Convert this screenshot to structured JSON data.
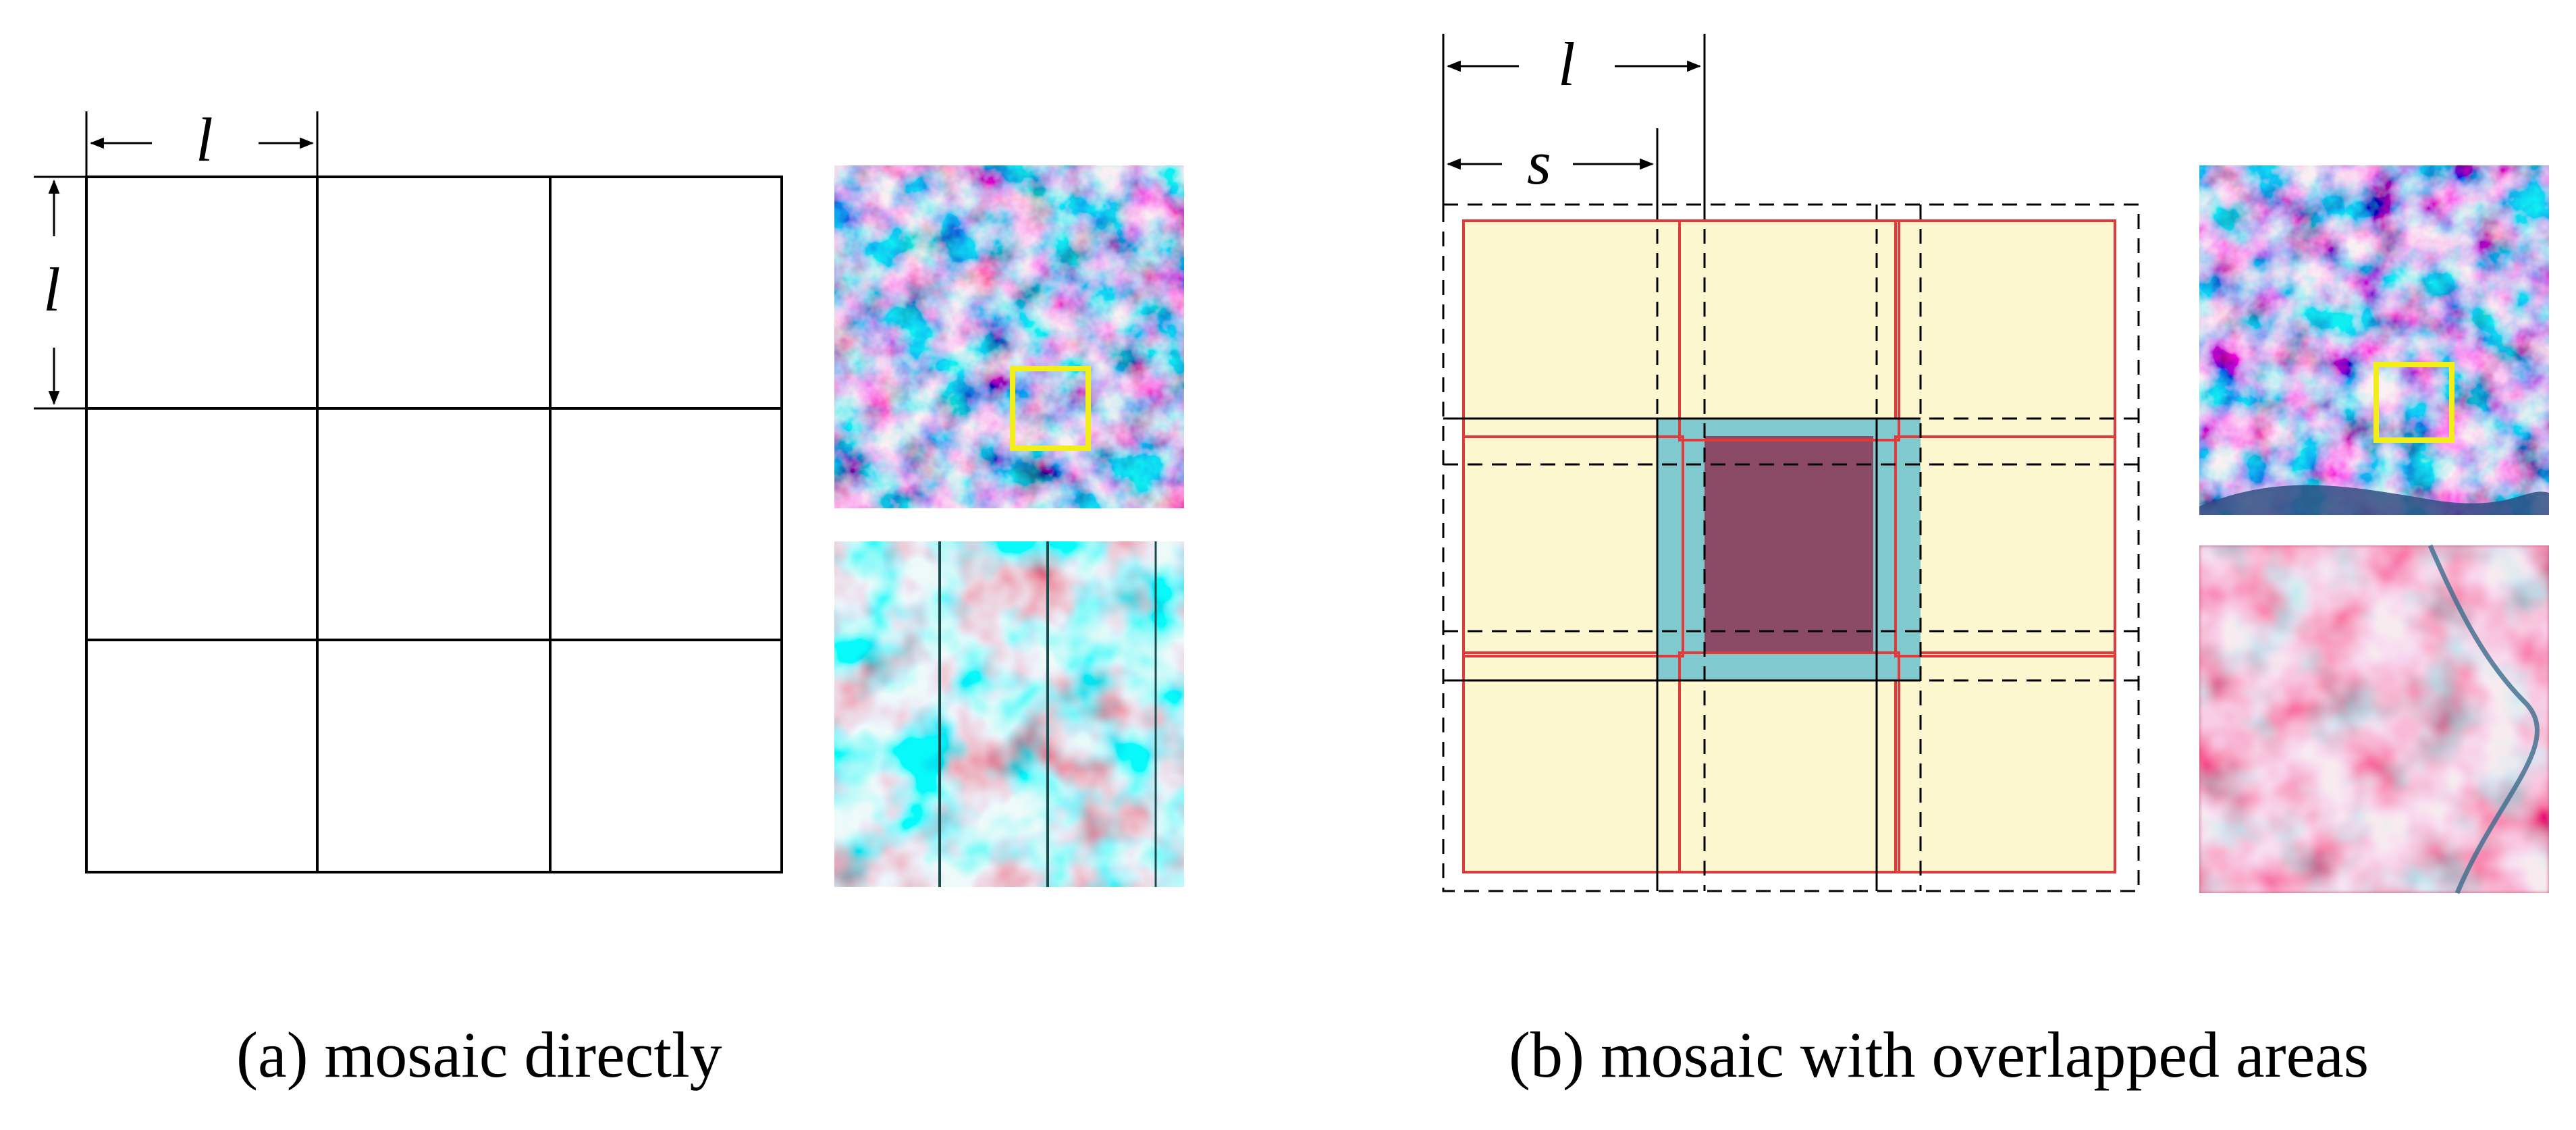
{
  "panel_a": {
    "dimension_label_horizontal": "l",
    "dimension_label_vertical": "l",
    "caption": "(a) mosaic directly"
  },
  "panel_b": {
    "dimension_label_l": "l",
    "dimension_label_s": "s",
    "caption": "(b) mosaic with overlapped areas"
  },
  "colors": {
    "grid_line": "#000000",
    "tile_fill": "#fdf7cf",
    "tile_border": "#e03a3a",
    "overlap_fill": "#7fc9cf",
    "center_fill": "#8b4a66",
    "highlight_box": "#f2ee1a"
  },
  "images": {
    "satellite_overview": "satellite-image",
    "zoomed_direct": "zoomed-satellite-image-with-seams",
    "zoomed_overlapped": "zoomed-satellite-image-seamless"
  }
}
